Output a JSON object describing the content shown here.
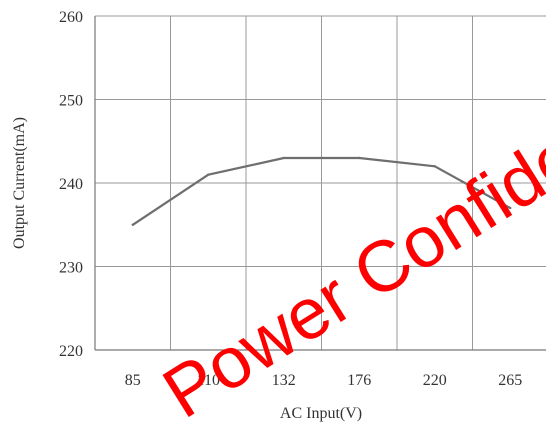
{
  "chart_data": {
    "type": "line",
    "x": [
      "85",
      "110",
      "132",
      "176",
      "220",
      "265"
    ],
    "y_ticks": [
      "220",
      "230",
      "240",
      "250",
      "260"
    ],
    "ylim": [
      220,
      260
    ],
    "xlabel": "AC Input(V)",
    "ylabel": "Output Current(mA)",
    "grid": true,
    "series": [
      {
        "values": [
          235,
          241,
          243,
          243,
          242,
          237
        ]
      }
    ],
    "colors": {
      "line": "#6e6e6e",
      "grid": "#999999",
      "axis": "#777777"
    }
  },
  "watermark": {
    "text": "Power Confidential",
    "color": "#ff0000"
  }
}
